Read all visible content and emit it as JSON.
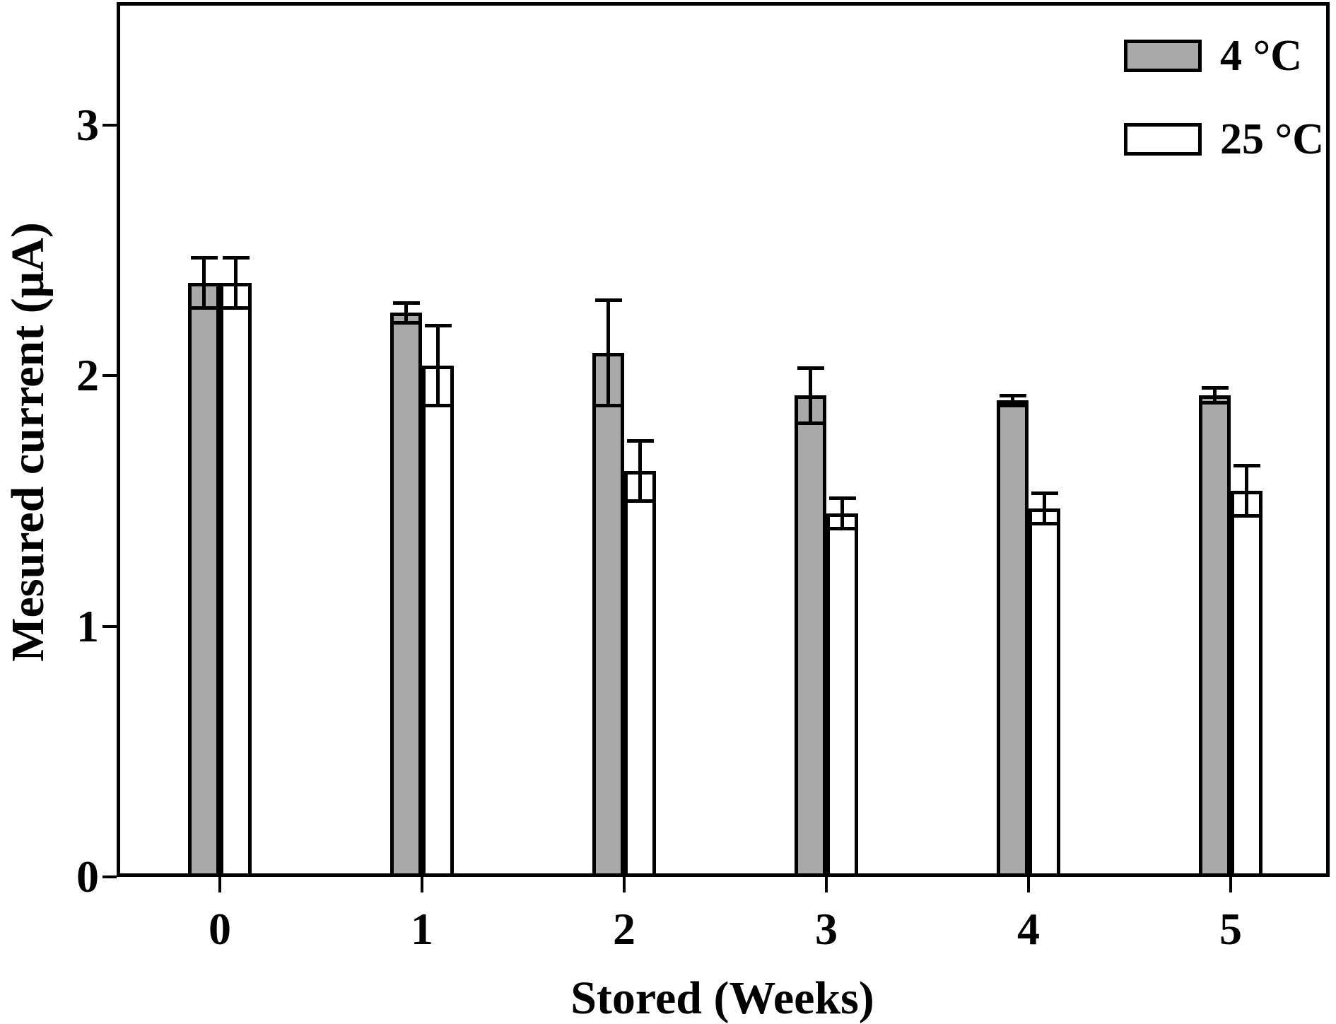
{
  "chart_data": {
    "type": "bar",
    "title": "",
    "xlabel": "Stored (Weeks)",
    "ylabel": "Mesured current (μA)",
    "categories": [
      "0",
      "1",
      "2",
      "3",
      "4",
      "5"
    ],
    "series": [
      {
        "name": "4 °C",
        "fill": "#a9a9a9",
        "values": [
          2.37,
          2.25,
          2.09,
          1.92,
          1.9,
          1.92
        ],
        "errors": [
          0.1,
          0.04,
          0.21,
          0.11,
          0.02,
          0.03
        ]
      },
      {
        "name": "25 °C",
        "fill": "#ffffff",
        "values": [
          2.37,
          2.04,
          1.62,
          1.45,
          1.47,
          1.54
        ],
        "errors": [
          0.1,
          0.16,
          0.12,
          0.06,
          0.06,
          0.1
        ]
      }
    ],
    "ylim": [
      0,
      3.5
    ],
    "yticks": [
      "0",
      "1",
      "2",
      "3"
    ],
    "grid": false,
    "legend_position": "top-right",
    "bar_border_color": "#000000",
    "error_bars": "symmetric-with-caps-above-and-below-bar-top"
  }
}
